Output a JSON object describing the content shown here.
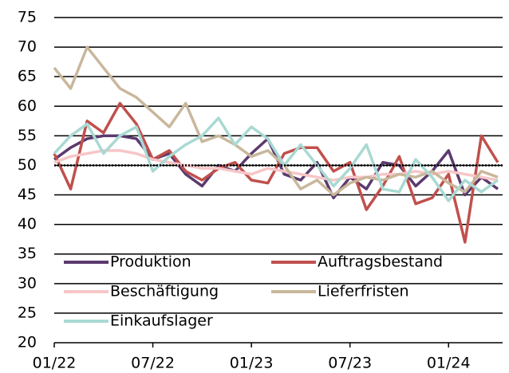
{
  "chart_data": {
    "type": "line",
    "categories": [
      "01/22",
      null,
      null,
      null,
      null,
      null,
      "07/22",
      null,
      null,
      null,
      null,
      null,
      "01/23",
      null,
      null,
      null,
      null,
      null,
      "07/23",
      null,
      null,
      null,
      null,
      null,
      "01/24",
      null,
      null,
      null
    ],
    "series": [
      {
        "name": "Produktion",
        "color": "#5b3a6e",
        "values": [
          51,
          53,
          54.5,
          55,
          55,
          54.5,
          51,
          52,
          48.5,
          46.5,
          50,
          49,
          52,
          54.5,
          48.5,
          47.5,
          50.5,
          44.5,
          48,
          46,
          50.5,
          50,
          46.5,
          49,
          52.5,
          45,
          48,
          46
        ]
      },
      {
        "name": "Auftragsbestand",
        "color": "#c0504d",
        "values": [
          52,
          46,
          57.5,
          55.5,
          60.5,
          57,
          51,
          52.5,
          49,
          47.5,
          49.5,
          50.5,
          47.5,
          47,
          52,
          53,
          53,
          49,
          50.5,
          42.5,
          46.5,
          51.5,
          43.5,
          44.5,
          48.5,
          37,
          55,
          50.5
        ]
      },
      {
        "name": "Beschäftigung",
        "color": "#f7c6c7",
        "values": [
          50.5,
          51.5,
          52,
          52.5,
          52.5,
          52,
          51,
          50.5,
          50,
          49.5,
          49.5,
          49,
          48.5,
          49.5,
          49,
          48.5,
          48,
          47.5,
          48,
          48,
          48.5,
          48.5,
          49,
          48.5,
          49,
          48.5,
          48,
          47.5
        ]
      },
      {
        "name": "Lieferfristen",
        "color": "#c9b79c",
        "values": [
          66.5,
          63,
          70,
          66.5,
          63,
          61.5,
          59,
          56.5,
          60.5,
          54,
          55,
          53.5,
          51.5,
          52.5,
          50,
          46,
          47.5,
          45,
          47,
          48,
          47.5,
          48.5,
          48,
          49,
          47,
          45.5,
          49,
          48
        ]
      },
      {
        "name": "Einkaufslager",
        "color": "#a9d9d3",
        "values": [
          52,
          55,
          57,
          52,
          55,
          56.5,
          49,
          51.5,
          53.5,
          55,
          58,
          53.5,
          56.5,
          54.5,
          50,
          53.5,
          50,
          46.5,
          49.5,
          53.5,
          46,
          45.5,
          51,
          48,
          44,
          47.5,
          45.5,
          47.5
        ]
      }
    ],
    "ylim": [
      20,
      75
    ],
    "yticks": [
      20,
      25,
      30,
      35,
      40,
      45,
      50,
      55,
      60,
      65,
      70,
      75
    ],
    "grid": true,
    "reference_line": 50,
    "legend": "bottom-left"
  }
}
